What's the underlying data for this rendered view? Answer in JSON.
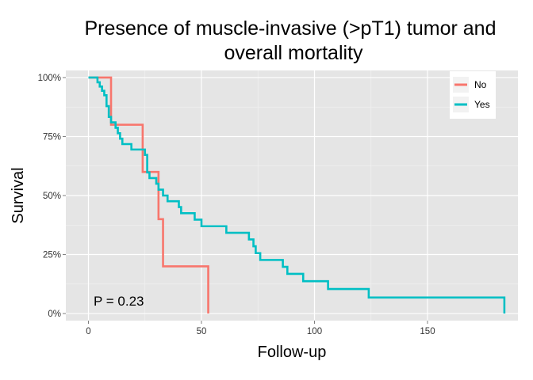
{
  "chart_data": {
    "type": "line",
    "title_line1": "Presence of muscle-invasive (>pT1) tumor and",
    "title_line2": "overall mortality",
    "xlabel": "Follow-up",
    "ylabel": "Survival",
    "xlim": [
      -10,
      190
    ],
    "ylim": [
      -0.03,
      1.03
    ],
    "x_ticks": [
      0,
      50,
      100,
      150
    ],
    "x_tick_labels": [
      "0",
      "50",
      "100",
      "150"
    ],
    "y_ticks": [
      0,
      0.25,
      0.5,
      0.75,
      1.0
    ],
    "y_tick_labels": [
      "0%",
      "25%",
      "50%",
      "75%",
      "100%"
    ],
    "grid": true,
    "legend_position": "top-right",
    "annotation": "P = 0.23",
    "series": [
      {
        "name": "No",
        "color": "#F8766D",
        "x": [
          0,
          10,
          24,
          31,
          33,
          53
        ],
        "y": [
          1.0,
          0.8,
          0.6,
          0.4,
          0.2,
          0.0
        ]
      },
      {
        "name": "Yes",
        "color": "#00BFC4",
        "x": [
          0,
          4,
          5,
          6,
          7,
          8,
          9,
          10,
          12,
          13,
          14,
          15,
          19,
          25,
          26,
          27,
          30,
          31,
          33,
          35,
          40,
          41,
          47,
          50,
          61,
          71,
          73,
          74,
          76,
          86,
          88,
          95,
          106,
          124,
          184
        ],
        "y": [
          1.0,
          0.98,
          0.962,
          0.944,
          0.925,
          0.879,
          0.833,
          0.81,
          0.787,
          0.764,
          0.741,
          0.718,
          0.695,
          0.672,
          0.598,
          0.574,
          0.55,
          0.525,
          0.5,
          0.476,
          0.451,
          0.425,
          0.398,
          0.37,
          0.342,
          0.314,
          0.285,
          0.256,
          0.227,
          0.198,
          0.168,
          0.137,
          0.104,
          0.068,
          0.0
        ]
      }
    ]
  }
}
